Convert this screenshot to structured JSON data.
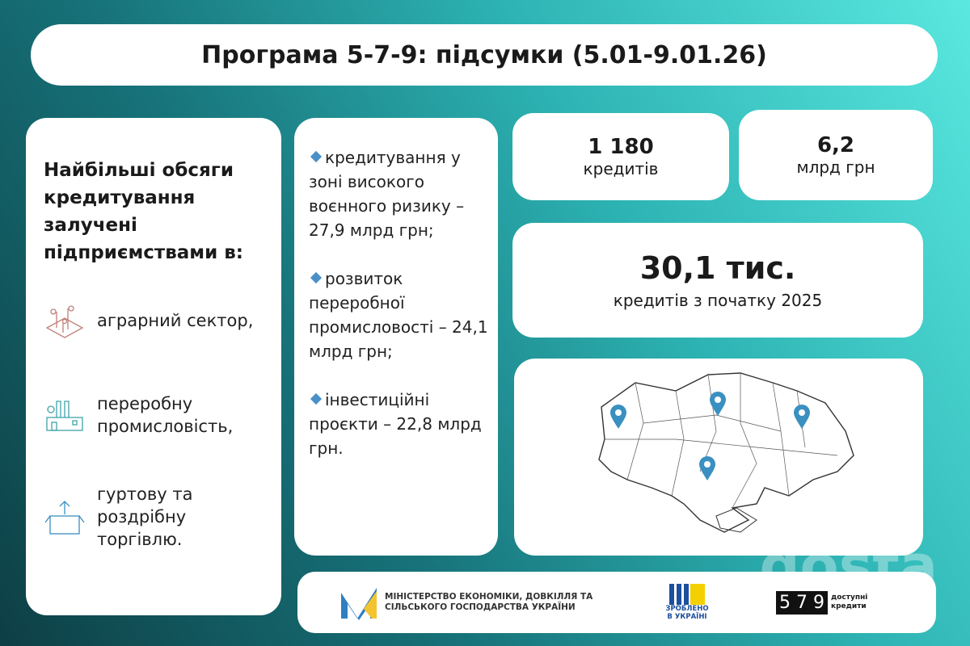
{
  "title": "Програма 5-7-9: підсумки (5.01-9.01.26)",
  "left": {
    "heading": "Найбільші обсяги кредитування залучені підприємствами в:",
    "sectors": [
      {
        "icon": "agriculture-icon",
        "label": "аграрний сектор,"
      },
      {
        "icon": "factory-icon",
        "label": "переробну промисловість,"
      },
      {
        "icon": "box-icon",
        "label": "гуртову та роздрібну торгівлю."
      }
    ]
  },
  "middle": {
    "items": [
      "кредитування у зоні високого воєнного ризику – 27,9 млрд грн;",
      "розвиток переробної промисловості – 24,1 млрд грн;",
      "інвестиційні проєкти – 22,8 млрд грн."
    ]
  },
  "stats": [
    {
      "value": "1 180",
      "label": "кредитів"
    },
    {
      "value": "6,2",
      "label": "млрд грн"
    },
    {
      "value": "30,1 тис.",
      "label": "кредитів з початку 2025"
    }
  ],
  "footer": {
    "ministry": "МІНІСТЕРСТВО ЕКОНОМІКИ, ДОВКІЛЛЯ ТА СІЛЬСЬКОГО ГОСПОДАРСТВА УКРАЇНИ",
    "made": "ЗРОБЛЕНО В УКРАЇНІ",
    "badge": "5 7 9",
    "badge_text": "доступні кредити"
  },
  "watermark": "dosta",
  "colors": {
    "accent": "#4a90c8",
    "bg_dark": "#0d3f45",
    "bg_light": "#5ae8e0"
  }
}
